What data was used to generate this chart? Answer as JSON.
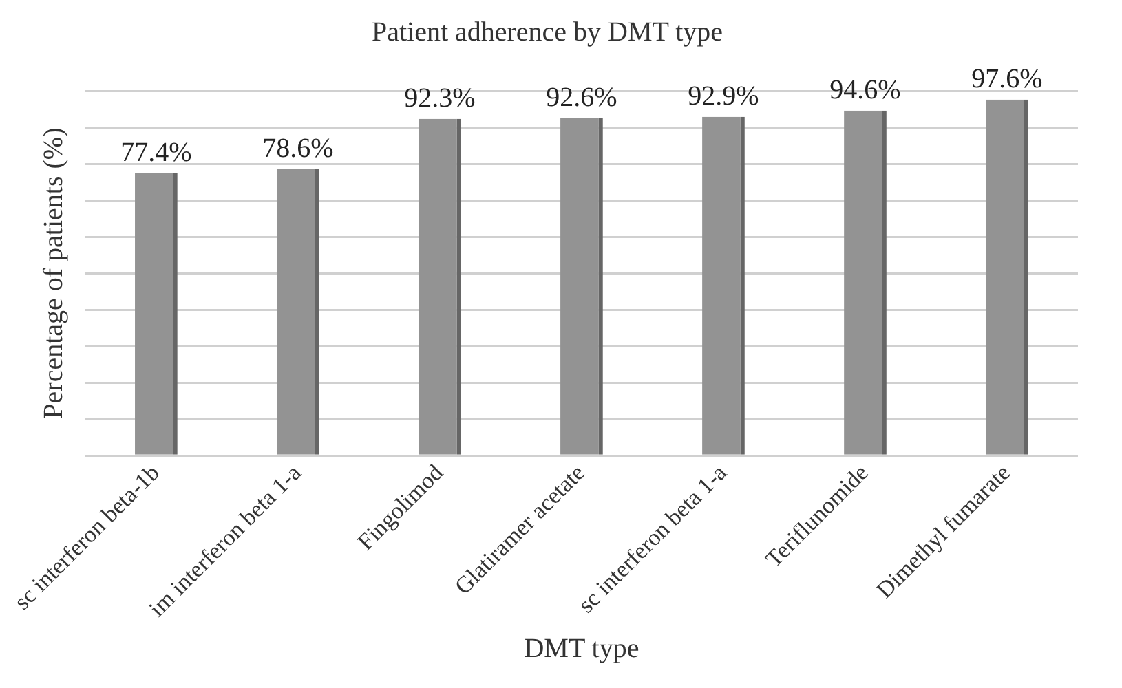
{
  "chart_data": {
    "type": "bar",
    "title": "Patient adherence by DMT type",
    "xlabel": "DMT type",
    "ylabel": "Percentage of patients (%)",
    "categories": [
      "sc interferon beta-1b",
      "im interferon beta 1-a",
      "Fingolimod",
      "Glatiramer acetate",
      "sc interferon beta 1-a",
      "Teriflunomide",
      "Dimethyl fumarate"
    ],
    "values": [
      77.4,
      78.6,
      92.3,
      92.6,
      92.9,
      94.6,
      97.6
    ],
    "value_labels": [
      "77.4%",
      "78.6%",
      "92.3%",
      "92.6%",
      "92.9%",
      "94.6%",
      "97.6%"
    ],
    "color": "#939393",
    "ylim": [
      0,
      100
    ],
    "yticks": [
      {
        "value": 0,
        "label": null
      },
      {
        "value": 10,
        "label": null
      },
      {
        "value": 20,
        "label": null
      },
      {
        "value": 30,
        "label": null
      },
      {
        "value": 40,
        "label": null
      },
      {
        "value": 50,
        "label": null
      },
      {
        "value": 60,
        "label": null
      },
      {
        "value": 70,
        "label": null
      },
      {
        "value": 80,
        "label": null
      },
      {
        "value": 90,
        "label": null
      },
      {
        "value": 100,
        "label": null
      }
    ],
    "grid": "y",
    "legend": false
  }
}
